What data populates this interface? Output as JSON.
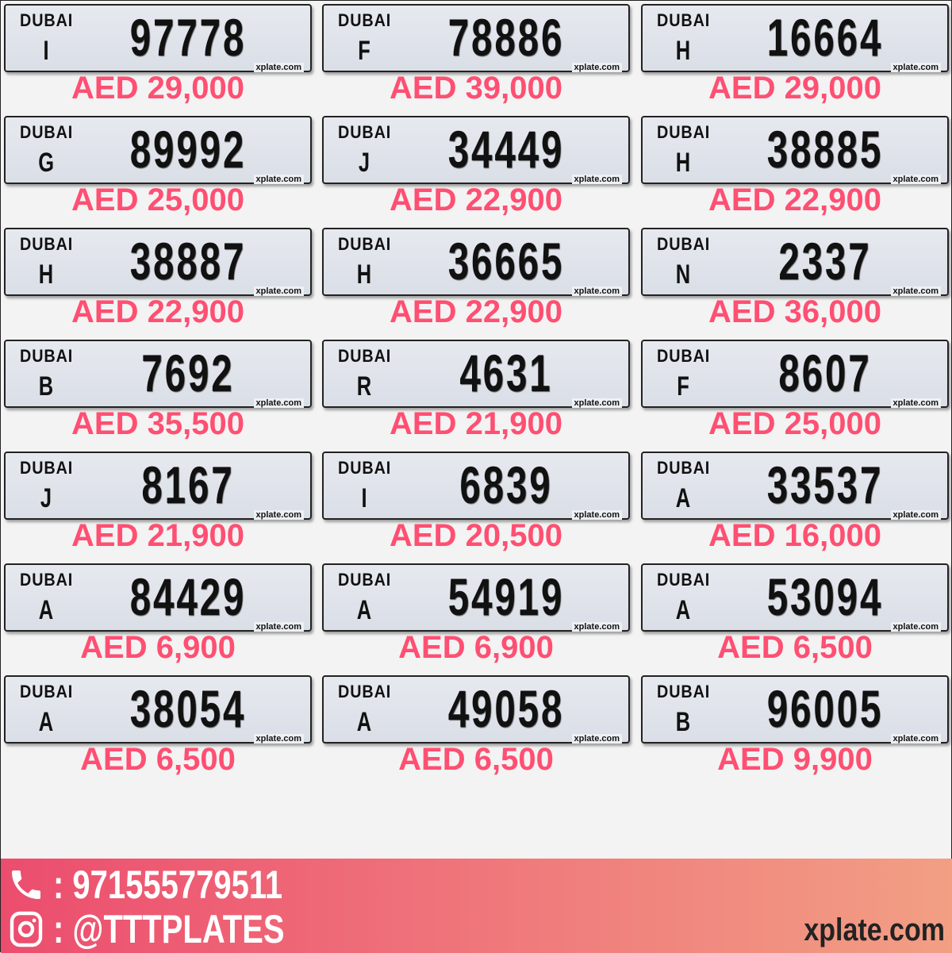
{
  "plates": [
    {
      "emirate": "DUBAI",
      "code": "I",
      "number": "97778",
      "price": "AED 29,000",
      "watermark": "xplate.com"
    },
    {
      "emirate": "DUBAI",
      "code": "F",
      "number": "78886",
      "price": "AED 39,000",
      "watermark": "xplate.com"
    },
    {
      "emirate": "DUBAI",
      "code": "H",
      "number": "16664",
      "price": "AED 29,000",
      "watermark": "xplate.com"
    },
    {
      "emirate": "DUBAI",
      "code": "G",
      "number": "89992",
      "price": "AED 25,000",
      "watermark": "xplate.com"
    },
    {
      "emirate": "DUBAI",
      "code": "J",
      "number": "34449",
      "price": "AED 22,900",
      "watermark": "xplate.com"
    },
    {
      "emirate": "DUBAI",
      "code": "H",
      "number": "38885",
      "price": "AED 22,900",
      "watermark": "xplate.com"
    },
    {
      "emirate": "DUBAI",
      "code": "H",
      "number": "38887",
      "price": "AED 22,900",
      "watermark": "xplate.com"
    },
    {
      "emirate": "DUBAI",
      "code": "H",
      "number": "36665",
      "price": "AED 22,900",
      "watermark": "xplate.com"
    },
    {
      "emirate": "DUBAI",
      "code": "N",
      "number": "2337",
      "price": "AED 36,000",
      "watermark": "xplate.com"
    },
    {
      "emirate": "DUBAI",
      "code": "B",
      "number": "7692",
      "price": "AED 35,500",
      "watermark": "xplate.com"
    },
    {
      "emirate": "DUBAI",
      "code": "R",
      "number": "4631",
      "price": "AED 21,900",
      "watermark": "xplate.com"
    },
    {
      "emirate": "DUBAI",
      "code": "F",
      "number": "8607",
      "price": "AED 25,000",
      "watermark": "xplate.com"
    },
    {
      "emirate": "DUBAI",
      "code": "J",
      "number": "8167",
      "price": "AED 21,900",
      "watermark": "xplate.com"
    },
    {
      "emirate": "DUBAI",
      "code": "I",
      "number": "6839",
      "price": "AED 20,500",
      "watermark": "xplate.com"
    },
    {
      "emirate": "DUBAI",
      "code": "A",
      "number": "33537",
      "price": "AED 16,000",
      "watermark": "xplate.com"
    },
    {
      "emirate": "DUBAI",
      "code": "A",
      "number": "84429",
      "price": "AED 6,900",
      "watermark": "xplate.com"
    },
    {
      "emirate": "DUBAI",
      "code": "A",
      "number": "54919",
      "price": "AED 6,900",
      "watermark": "xplate.com"
    },
    {
      "emirate": "DUBAI",
      "code": "A",
      "number": "53094",
      "price": "AED 6,500",
      "watermark": "xplate.com"
    },
    {
      "emirate": "DUBAI",
      "code": "A",
      "number": "38054",
      "price": "AED 6,500",
      "watermark": "xplate.com"
    },
    {
      "emirate": "DUBAI",
      "code": "A",
      "number": "49058",
      "price": "AED 6,500",
      "watermark": "xplate.com"
    },
    {
      "emirate": "DUBAI",
      "code": "B",
      "number": "96005",
      "price": "AED 9,900",
      "watermark": "xplate.com"
    }
  ],
  "footer": {
    "phone": ": 971555779511",
    "instagram": ": @TTTPLATES",
    "site": "xplate.com",
    "phone_icon": "phone-icon",
    "instagram_icon": "instagram-icon"
  },
  "colors": {
    "price": "#ff4f72",
    "banner_start": "#ec4d6e",
    "banner_end": "#f29f84"
  }
}
